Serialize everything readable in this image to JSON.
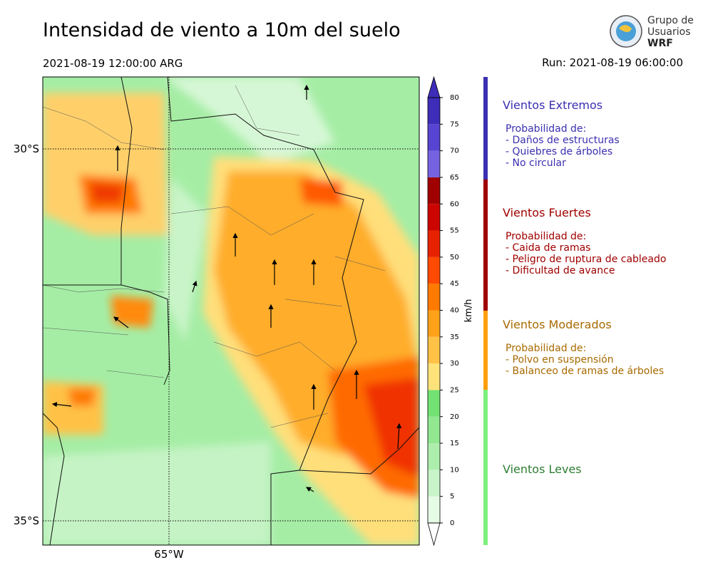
{
  "header": {
    "title": "Intensidad de viento a 10m del suelo",
    "valid_time": "2021-08-19 12:00:00 ARG",
    "run": "Run: 2021-08-19 06:00:00",
    "logo": [
      "Grupo de",
      "Usuarios",
      "WRF"
    ]
  },
  "map": {
    "lat_labels": [
      "30°S",
      "35°S"
    ],
    "lon_labels": [
      "65°W"
    ]
  },
  "colorbar": {
    "label": "km/h",
    "lim": [
      0,
      80
    ],
    "ticks": [
      0,
      5,
      10,
      15,
      20,
      25,
      30,
      35,
      40,
      45,
      50,
      55,
      60,
      65,
      70,
      75,
      80
    ],
    "colors": [
      "#e6fbe6",
      "#c9f4c9",
      "#adeead",
      "#91e891",
      "#72e272",
      "#ffe27a",
      "#ffc247",
      "#ffa21a",
      "#ff7a00",
      "#ff4a00",
      "#e82200",
      "#cc0500",
      "#a00000",
      "#7462e0",
      "#5744d2",
      "#3d2db8"
    ],
    "under_color": "#ffffff",
    "over_color": "#3d2db8"
  },
  "legend": {
    "groups": [
      {
        "title": "Vientos Extremos",
        "color": "#3b2fb0",
        "lines": [
          "Probabilidad de:",
          "- Daños de estructuras",
          "- Quiebres de árboles",
          "- No circular"
        ]
      },
      {
        "title": "Vientos Fuertes",
        "color": "#a00000",
        "lines": [
          "Probabilidad de:",
          "- Caida de ramas",
          "- Peligro de ruptura de cableado",
          "- Dificultad de avance"
        ]
      },
      {
        "title": "Vientos Moderados",
        "color": "#a86a00",
        "lines": [
          "Probabilidad de:",
          "- Polvo en suspensión",
          "- Balanceo de ramas de árboles"
        ]
      },
      {
        "title": "Vientos Leves",
        "color": "#2e7d32",
        "lines": []
      }
    ]
  }
}
